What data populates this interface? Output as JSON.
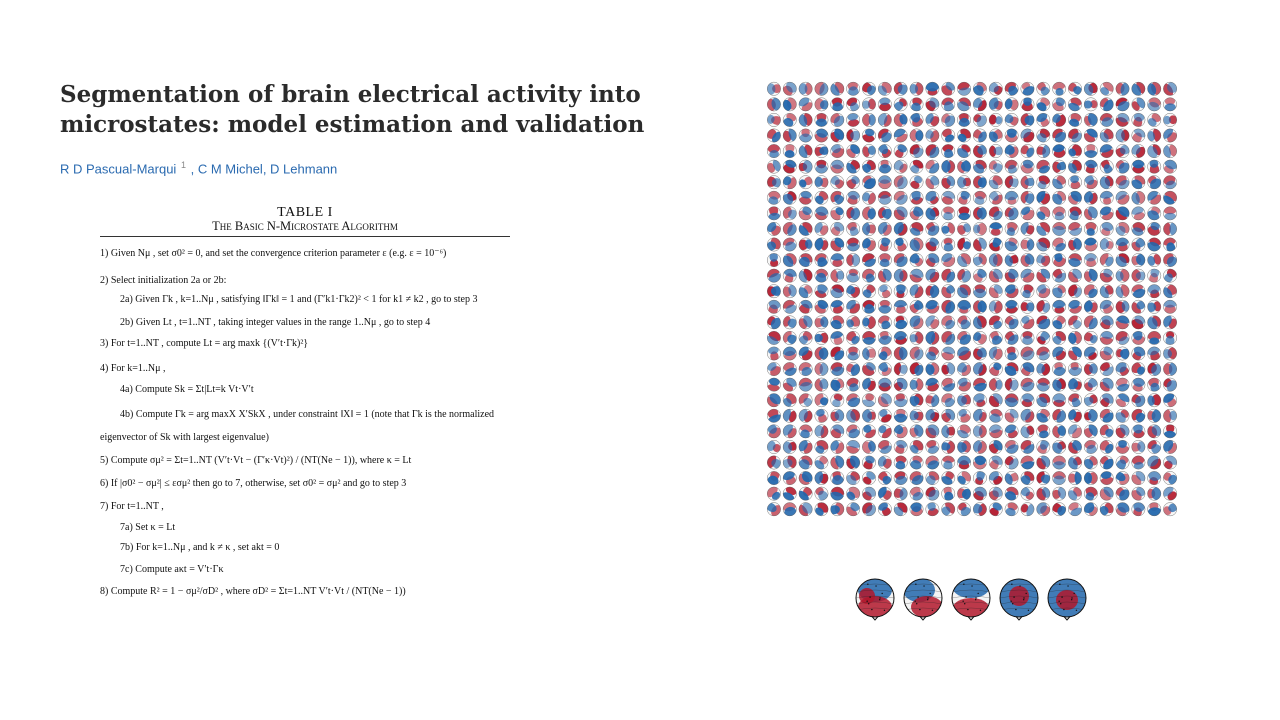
{
  "paper": {
    "title": "Segmentation of brain electrical activity into microstates: model estimation and validation",
    "authors": [
      {
        "name": "R D Pascual-Marqui",
        "affiliation_marker": "1"
      },
      {
        "name": ", C M Michel, D Lehmann",
        "affiliation_marker": ""
      }
    ]
  },
  "table": {
    "number": "TABLE I",
    "name": "The Basic N-Microstate Algorithm",
    "steps": [
      {
        "id": "1",
        "text": "1) Given Nμ , set σ0² = 0, and set the convergence criterion parameter ε (e.g. ε = 10⁻⁶)"
      },
      {
        "id": "2",
        "text": "2) Select initialization 2a or 2b:"
      },
      {
        "id": "2a",
        "text": "2a) Given Γk , k=1..Nμ , satisfying ‖Γk‖ = 1 and (Γ′k1·Γk2)² < 1 for k1 ≠ k2 , go to step 3"
      },
      {
        "id": "2b",
        "text": "2b) Given Lt , t=1..NT , taking integer values in the range 1..Nμ , go to step 4"
      },
      {
        "id": "3",
        "text": "3) For t=1..NT , compute Lt = arg maxk {(V′t·Γk)²}"
      },
      {
        "id": "4",
        "text": "4) For k=1..Nμ ,"
      },
      {
        "id": "4a",
        "text": "4a) Compute Sk = Σt|Lt=k Vt·V′t"
      },
      {
        "id": "4b",
        "text": "4b) Compute Γk = arg maxX X′SkX , under constraint ‖X‖ = 1 (note that Γk is the normalized"
      },
      {
        "id": "4b-cont",
        "text": "eigenvector of Sk with largest eigenvalue)"
      },
      {
        "id": "5",
        "text": "5) Compute σμ² = Σt=1..NT (V′t·Vt − (Γ′κ·Vt)²) / (NT(Ne − 1)), where κ = Lt"
      },
      {
        "id": "6",
        "text": "6) If |σ0² − σμ²| ≤ εσμ² then go to 7, otherwise, set σ0² = σμ² and go to step 3"
      },
      {
        "id": "7",
        "text": "7) For t=1..NT ,"
      },
      {
        "id": "7a",
        "text": "7a) Set κ = Lt"
      },
      {
        "id": "7b",
        "text": "7b) For k=1..Nμ , and k ≠ κ , set akt = 0"
      },
      {
        "id": "7c",
        "text": "7c) Compute aκt = V′t·Γκ"
      },
      {
        "id": "8",
        "text": "8) Compute R² = 1 − σμ²/σD² , where σD² = Σt=1..NT V′t·Vt / (NT(Ne − 1))"
      }
    ]
  },
  "figure": {
    "grid_rows": 28,
    "grid_cols": 26,
    "colors": {
      "positive": "#b2182b",
      "negative": "#2166ac",
      "neutral": "#f7f7f7"
    },
    "microstate_map_count": 5
  }
}
